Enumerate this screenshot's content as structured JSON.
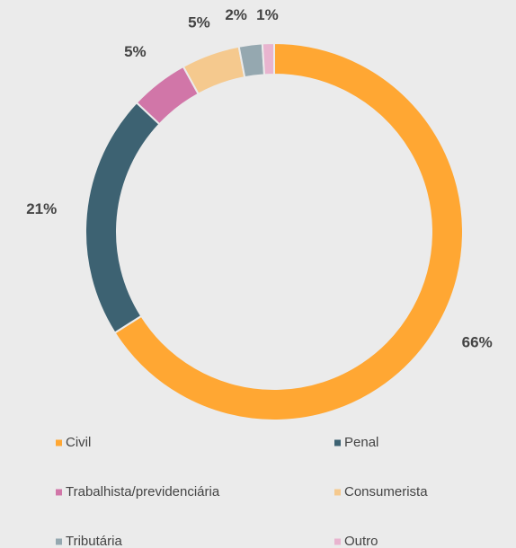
{
  "chart_data": {
    "type": "donut",
    "categories": [
      "Civil",
      "Penal",
      "Trabalhista/previdenciária",
      "Consumerista",
      "Tributária",
      "Outro"
    ],
    "values": [
      66,
      21,
      5,
      5,
      2,
      1
    ],
    "value_labels": [
      "66%",
      "21%",
      "5%",
      "5%",
      "2%",
      "1%"
    ],
    "colors": [
      "#ffa733",
      "#3d6272",
      "#d176a8",
      "#f5c98e",
      "#95a8b0",
      "#e8b4cf"
    ]
  }
}
